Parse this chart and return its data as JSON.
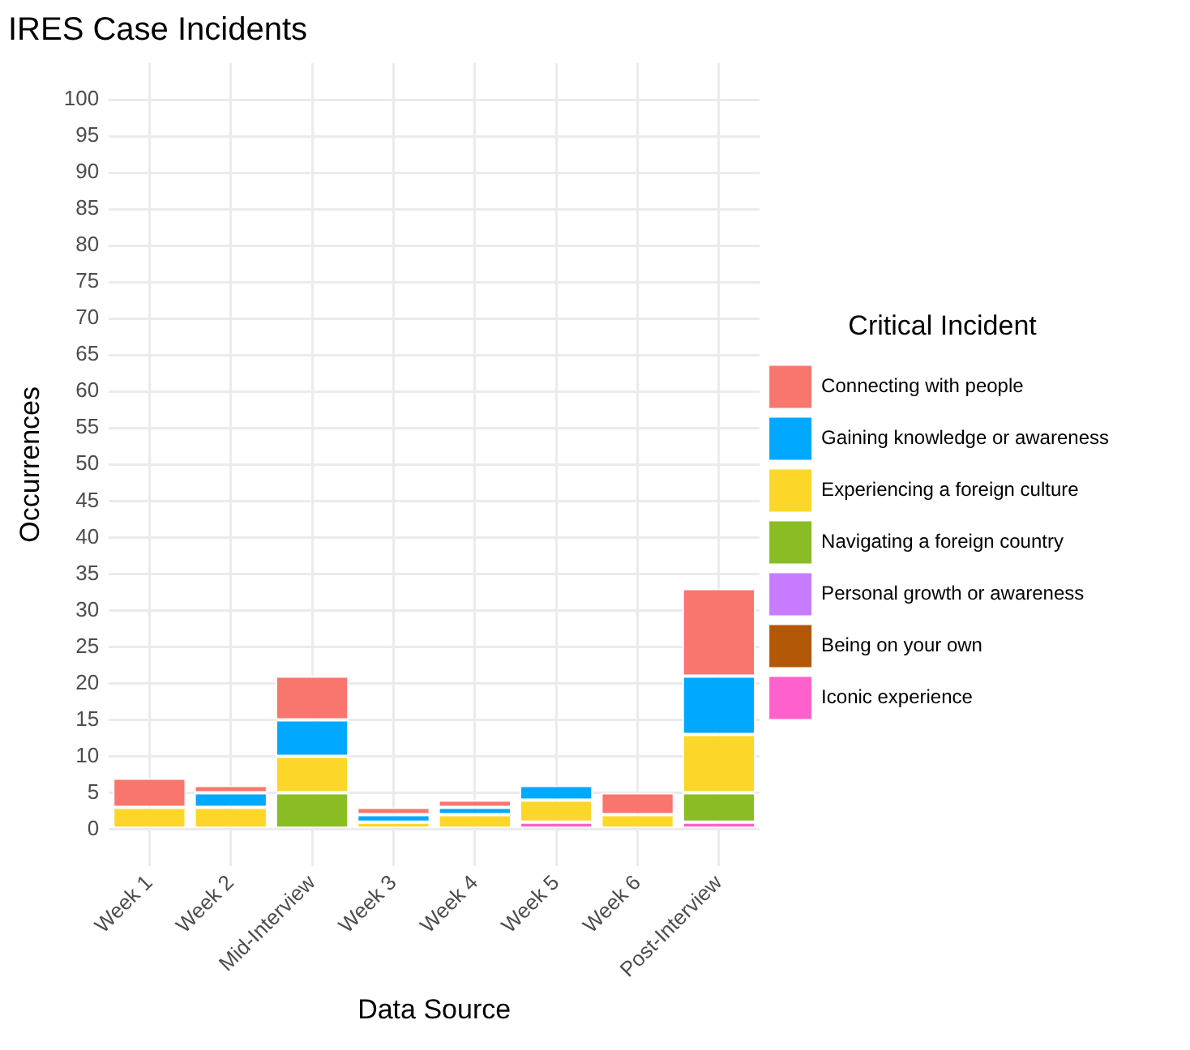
{
  "chart_data": {
    "type": "bar",
    "title": "IRES Case Incidents",
    "xlabel": "Data Source",
    "ylabel": "Occurrences",
    "legend_title": "Critical Incident",
    "categories": [
      "Week 1",
      "Week 2",
      "Mid-Interview",
      "Week 3",
      "Week 4",
      "Week 5",
      "Week 6",
      "Post-Interview"
    ],
    "stacked": true,
    "series": [
      {
        "name": "Iconic experience",
        "color": "#ff61cc",
        "values": [
          0,
          0,
          0,
          0,
          0,
          1,
          0,
          1
        ]
      },
      {
        "name": "Being on your own",
        "color": "#b35806",
        "values": [
          0,
          0,
          0,
          0,
          0,
          0,
          0,
          0
        ]
      },
      {
        "name": "Personal growth or awareness",
        "color": "#c77cff",
        "values": [
          0,
          0,
          0,
          0,
          0,
          0,
          0,
          0
        ]
      },
      {
        "name": "Navigating a foreign country",
        "color": "#8abd24",
        "values": [
          0,
          0,
          5,
          0,
          0,
          0,
          0,
          4
        ]
      },
      {
        "name": "Experiencing a foreign culture",
        "color": "#fcd72a",
        "values": [
          3,
          3,
          5,
          1,
          2,
          3,
          2,
          8
        ]
      },
      {
        "name": "Gaining knowledge or awareness",
        "color": "#00a9ff",
        "values": [
          0,
          2,
          5,
          1,
          1,
          2,
          0,
          8
        ]
      },
      {
        "name": "Connecting with people",
        "color": "#f8766d",
        "values": [
          4,
          1,
          6,
          1,
          1,
          0,
          3,
          12
        ]
      }
    ],
    "ylim": [
      -5,
      105
    ],
    "yticks": [
      0,
      5,
      10,
      15,
      20,
      25,
      30,
      35,
      40,
      45,
      50,
      55,
      60,
      65,
      70,
      75,
      80,
      85,
      90,
      95,
      100
    ],
    "grid": true,
    "legend": "right"
  }
}
